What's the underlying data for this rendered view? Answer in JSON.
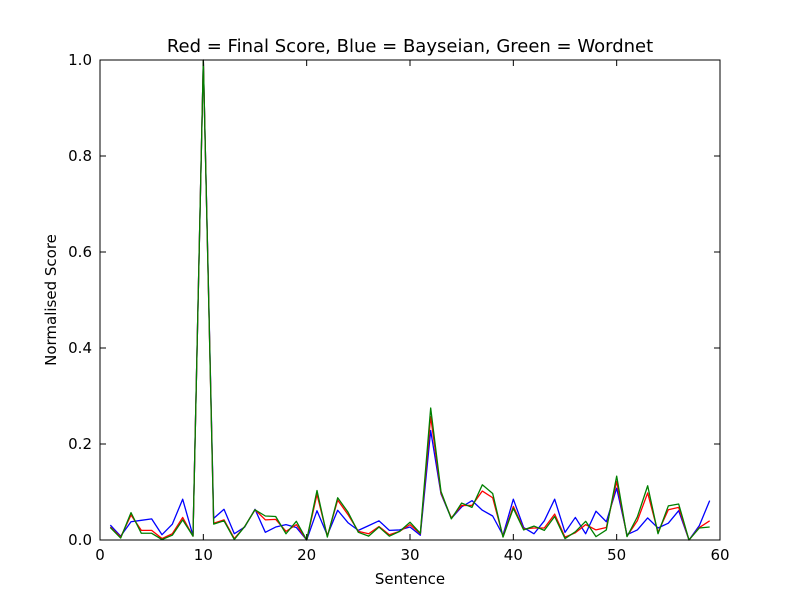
{
  "chart_data": {
    "type": "line",
    "title": "Red = Final Score, Blue = Bayseian, Green = Wordnet",
    "xlabel": "Sentence",
    "ylabel": "Normalised Score",
    "xlim": [
      0,
      60
    ],
    "ylim": [
      0.0,
      1.0
    ],
    "xticks": [
      "0",
      "10",
      "20",
      "30",
      "40",
      "50",
      "60"
    ],
    "yticks": [
      "0.0",
      "0.2",
      "0.4",
      "0.6",
      "0.8",
      "1.0"
    ],
    "grid": false,
    "x": [
      1,
      2,
      3,
      4,
      5,
      6,
      7,
      8,
      9,
      10,
      11,
      12,
      13,
      14,
      15,
      16,
      17,
      18,
      19,
      20,
      21,
      22,
      23,
      24,
      25,
      26,
      27,
      28,
      29,
      30,
      31,
      32,
      33,
      34,
      35,
      36,
      37,
      38,
      39,
      40,
      41,
      42,
      43,
      44,
      45,
      46,
      47,
      48,
      49,
      50,
      51,
      52,
      53,
      54,
      55,
      56,
      57,
      58,
      59
    ],
    "series": [
      {
        "name": "Red = Final Score",
        "color": "#ff0000",
        "values": [
          0.027,
          0.006,
          0.052,
          0.02,
          0.02,
          0.003,
          0.013,
          0.047,
          0.008,
          1.0,
          0.035,
          0.042,
          0.003,
          0.028,
          0.063,
          0.042,
          0.043,
          0.018,
          0.032,
          0.0,
          0.095,
          0.008,
          0.083,
          0.053,
          0.018,
          0.013,
          0.028,
          0.011,
          0.018,
          0.032,
          0.013,
          0.257,
          0.098,
          0.046,
          0.072,
          0.072,
          0.102,
          0.088,
          0.007,
          0.07,
          0.023,
          0.025,
          0.025,
          0.054,
          0.006,
          0.015,
          0.032,
          0.021,
          0.026,
          0.122,
          0.008,
          0.04,
          0.098,
          0.016,
          0.063,
          0.068,
          0.0,
          0.026,
          0.04
        ]
      },
      {
        "name": "Blue = Bayseian",
        "color": "#0000ff",
        "values": [
          0.031,
          0.008,
          0.038,
          0.041,
          0.044,
          0.011,
          0.033,
          0.085,
          0.009,
          1.0,
          0.045,
          0.064,
          0.013,
          0.027,
          0.064,
          0.016,
          0.027,
          0.032,
          0.026,
          0.0,
          0.061,
          0.01,
          0.062,
          0.036,
          0.02,
          0.03,
          0.04,
          0.02,
          0.021,
          0.027,
          0.01,
          0.228,
          0.096,
          0.045,
          0.069,
          0.082,
          0.062,
          0.05,
          0.01,
          0.085,
          0.026,
          0.013,
          0.04,
          0.085,
          0.016,
          0.047,
          0.013,
          0.06,
          0.038,
          0.108,
          0.011,
          0.021,
          0.046,
          0.025,
          0.035,
          0.061,
          0.0,
          0.03,
          0.082
        ]
      },
      {
        "name": "Green = Wordnet",
        "color": "#008000",
        "values": [
          0.026,
          0.004,
          0.057,
          0.014,
          0.014,
          0.001,
          0.01,
          0.042,
          0.008,
          1.0,
          0.033,
          0.04,
          0.001,
          0.028,
          0.063,
          0.05,
          0.049,
          0.013,
          0.039,
          0.0,
          0.103,
          0.006,
          0.088,
          0.058,
          0.016,
          0.008,
          0.027,
          0.008,
          0.018,
          0.037,
          0.014,
          0.275,
          0.101,
          0.044,
          0.077,
          0.068,
          0.115,
          0.097,
          0.006,
          0.066,
          0.021,
          0.029,
          0.02,
          0.049,
          0.003,
          0.017,
          0.039,
          0.007,
          0.021,
          0.133,
          0.007,
          0.048,
          0.113,
          0.013,
          0.071,
          0.075,
          0.0,
          0.025,
          0.027
        ]
      }
    ]
  }
}
